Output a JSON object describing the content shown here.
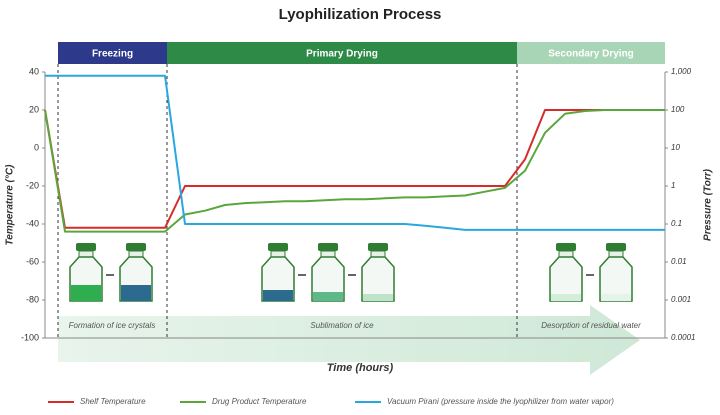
{
  "chart_data": {
    "type": "line",
    "title": "Lyophilization Process",
    "phases": [
      {
        "label": "Freezing",
        "color": "#2d3a8c"
      },
      {
        "label": "Primary Drying",
        "color": "#2e8b47"
      },
      {
        "label": "Secondary Drying",
        "color": "#a8d5b5"
      }
    ],
    "annotations": [
      "Formation of ice crystals",
      "Sublimation of ice",
      "Desorption of residual water"
    ],
    "x_label": "Time (hours)",
    "y_label": "Temperature (°C)",
    "y2_label": "Pressure (Torr)",
    "categories": [
      null,
      null,
      null,
      null,
      null,
      null,
      null,
      null,
      null,
      null,
      null,
      null,
      null,
      null,
      null,
      null,
      null,
      null,
      null,
      null,
      null,
      null,
      null,
      null,
      null,
      null,
      null,
      null,
      null,
      null,
      null,
      null
    ],
    "ylim": [
      -100,
      40
    ],
    "yticks": [
      40,
      20,
      0,
      -20,
      -40,
      -60,
      -80,
      -100
    ],
    "y2lim": [
      0.0001,
      1000
    ],
    "y2log": true,
    "y2ticks": [
      {
        "value": 1000,
        "label": "1,000"
      },
      100,
      10,
      1,
      0.1,
      0.01,
      0.001,
      0.0001
    ],
    "series": [
      {
        "name": "Shelf Temperature",
        "color": "#d62c2c",
        "values": [
          20,
          -42,
          -42,
          -42,
          -42,
          -42,
          -42,
          -20,
          -20,
          -20,
          -20,
          -20,
          -20,
          -20,
          -20,
          -20,
          -20,
          -20,
          -20,
          -20,
          -20,
          -20,
          -20,
          -20,
          -6,
          20,
          20,
          20,
          20,
          20,
          20,
          20
        ]
      },
      {
        "name": "Drug Product Temperature",
        "color": "#5aa63c",
        "values": [
          20,
          -44,
          -44,
          -44,
          -44,
          -44,
          -44,
          -35,
          -33,
          -30,
          -29,
          -28.5,
          -28,
          -28,
          -27.5,
          -27,
          -27,
          -26.5,
          -26,
          -26,
          -25.5,
          -25,
          -23,
          -21,
          -12,
          8,
          18,
          19.5,
          20,
          20,
          20,
          20
        ]
      },
      {
        "name": "Vacuum Pirani (pressure inside the lyophilizer from water vapor)",
        "color": "#2aa7e0",
        "axis": "y2",
        "values": [
          800,
          800,
          800,
          800,
          800,
          800,
          800,
          0.1,
          0.1,
          0.1,
          0.1,
          0.1,
          0.1,
          0.1,
          0.1,
          0.1,
          0.1,
          0.1,
          0.1,
          0.09,
          0.08,
          0.07,
          0.07,
          0.07,
          0.07,
          0.07,
          0.07,
          0.07,
          0.07,
          0.07,
          0.07,
          0.07
        ]
      }
    ]
  }
}
